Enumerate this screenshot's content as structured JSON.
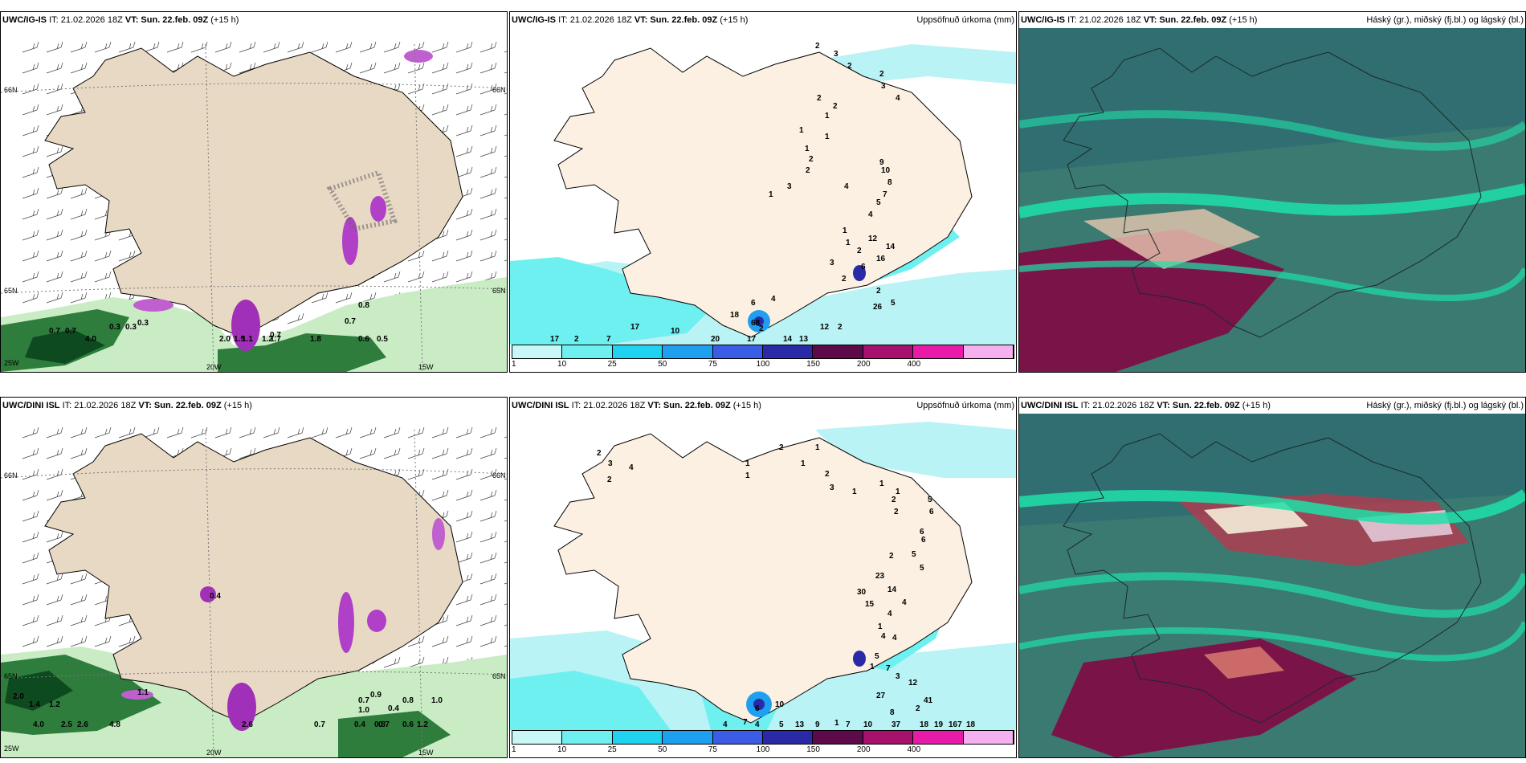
{
  "panels": [
    {
      "id": "p1",
      "source": "UWC/IG-IS",
      "it": "IT: 21.02.2026 18Z",
      "vt_label": "VT:",
      "vt": "Sun. 22.feb. 09Z",
      "lead": "(+15 h)",
      "right": "",
      "grid_labels": [
        "66N",
        "65N",
        "25W",
        "20W",
        "15W",
        "66N",
        "65N"
      ],
      "values": [
        "0.7",
        "0.7",
        "0.3",
        "0.3",
        "0.3",
        "4.0",
        "2.0",
        "1.5",
        "0.7",
        "1.2",
        "1.1",
        "1.7",
        "1.8",
        "0.6",
        "0.5",
        "0.7",
        "0.8"
      ]
    },
    {
      "id": "p2",
      "source": "UWC/IG-IS",
      "it": "IT: 21.02.2026 18Z",
      "vt_label": "VT:",
      "vt": "Sun. 22.feb. 09Z",
      "lead": "(+15 h)",
      "right": "Uppsöfnuð úrkoma (mm)",
      "values": [
        "2",
        "3",
        "2",
        "2",
        "3",
        "4",
        "2",
        "2",
        "1",
        "1",
        "1",
        "1",
        "2",
        "2",
        "1",
        "3",
        "4",
        "9",
        "10",
        "8",
        "7",
        "5",
        "4",
        "1",
        "1",
        "3",
        "12",
        "14",
        "16",
        "2",
        "6",
        "2",
        "2",
        "5",
        "26",
        "2",
        "4",
        "6",
        "18",
        "68",
        "2",
        "12",
        "14",
        "13",
        "17",
        "20",
        "10",
        "17",
        "7",
        "2",
        "17"
      ],
      "colorbar": {
        "labels": [
          "1",
          "10",
          "25",
          "50",
          "75",
          "100",
          "150",
          "200",
          "400"
        ],
        "colors": [
          "#c8f7f7",
          "#6ff0f0",
          "#1fd2f0",
          "#1f9ff0",
          "#3b5ce6",
          "#2a2aa8",
          "#5c0a4a",
          "#a8106e",
          "#e81aa8",
          "#f5b0f0"
        ]
      }
    },
    {
      "id": "p3",
      "source": "UWC/IG-IS",
      "it": "IT: 21.02.2026 18Z",
      "vt_label": "VT:",
      "vt": "Sun. 22.feb. 09Z",
      "lead": "(+15 h)",
      "right": "Háský (gr.), miðský (fj.bl.) og lágský (bl.)"
    },
    {
      "id": "p4",
      "source": "UWC/DINI ISL",
      "it": "IT: 21.02.2026 18Z",
      "vt_label": "VT:",
      "vt": "Sun. 22.feb. 09Z",
      "lead": "(+15 h)",
      "right": "",
      "grid_labels": [
        "66N",
        "65N",
        "25W",
        "20W",
        "15W",
        "66N",
        "65N"
      ],
      "values": [
        "0.4",
        "2.0",
        "1.4",
        "1.2",
        "4.0",
        "2.5",
        "2.6",
        "4.8",
        "1.1",
        "0.7",
        "2.6",
        "0.7",
        "0.9",
        "1.0",
        "0.8",
        "1.0",
        "0.7",
        "0.6",
        "1.2",
        "0.4",
        "0.4",
        "0.8"
      ]
    },
    {
      "id": "p5",
      "source": "UWC/DINI ISL",
      "it": "IT: 21.02.2026 18Z",
      "vt_label": "VT:",
      "vt": "Sun. 22.feb. 09Z",
      "lead": "(+15 h)",
      "right": "Uppsöfnuð úrkoma (mm)",
      "values": [
        "2",
        "3",
        "4",
        "2",
        "1",
        "1",
        "2",
        "1",
        "1",
        "2",
        "3",
        "1",
        "1",
        "1",
        "2",
        "2",
        "5",
        "6",
        "6",
        "6",
        "5",
        "5",
        "2",
        "23",
        "30",
        "15",
        "14",
        "4",
        "4",
        "1",
        "4",
        "4",
        "5",
        "1",
        "7",
        "3",
        "12",
        "27",
        "8",
        "2",
        "41",
        "10",
        "10",
        "6",
        "7",
        "4",
        "4",
        "5",
        "13",
        "9",
        "7",
        "1",
        "37",
        "18",
        "19",
        "167",
        "18"
      ],
      "colorbar": {
        "labels": [
          "1",
          "10",
          "25",
          "50",
          "75",
          "100",
          "150",
          "200",
          "400"
        ],
        "colors": [
          "#c8f7f7",
          "#6ff0f0",
          "#1fd2f0",
          "#1f9ff0",
          "#3b5ce6",
          "#2a2aa8",
          "#5c0a4a",
          "#a8106e",
          "#e81aa8",
          "#f5b0f0"
        ]
      }
    },
    {
      "id": "p6",
      "source": "UWC/DINI ISL",
      "it": "IT: 21.02.2026 18Z",
      "vt_label": "VT:",
      "vt": "Sun. 22.feb. 09Z",
      "lead": "(+15 h)",
      "right": "Háský (gr.), miðský (fj.bl.) og lágský (bl.)"
    }
  ],
  "colors": {
    "land": "#eadbc6",
    "land2": "#f8eee2",
    "sea_pale": "#b9f3f5",
    "sea_cyan": "#3fe6ee",
    "snow_green_dark": "#0e5a2a",
    "snow_green_light": "#b8e6b0",
    "purple": "#b040c8",
    "cloud_base": "#3b7a70",
    "cloud_high": "#1fe0a8",
    "cloud_low": "#8a1048"
  }
}
